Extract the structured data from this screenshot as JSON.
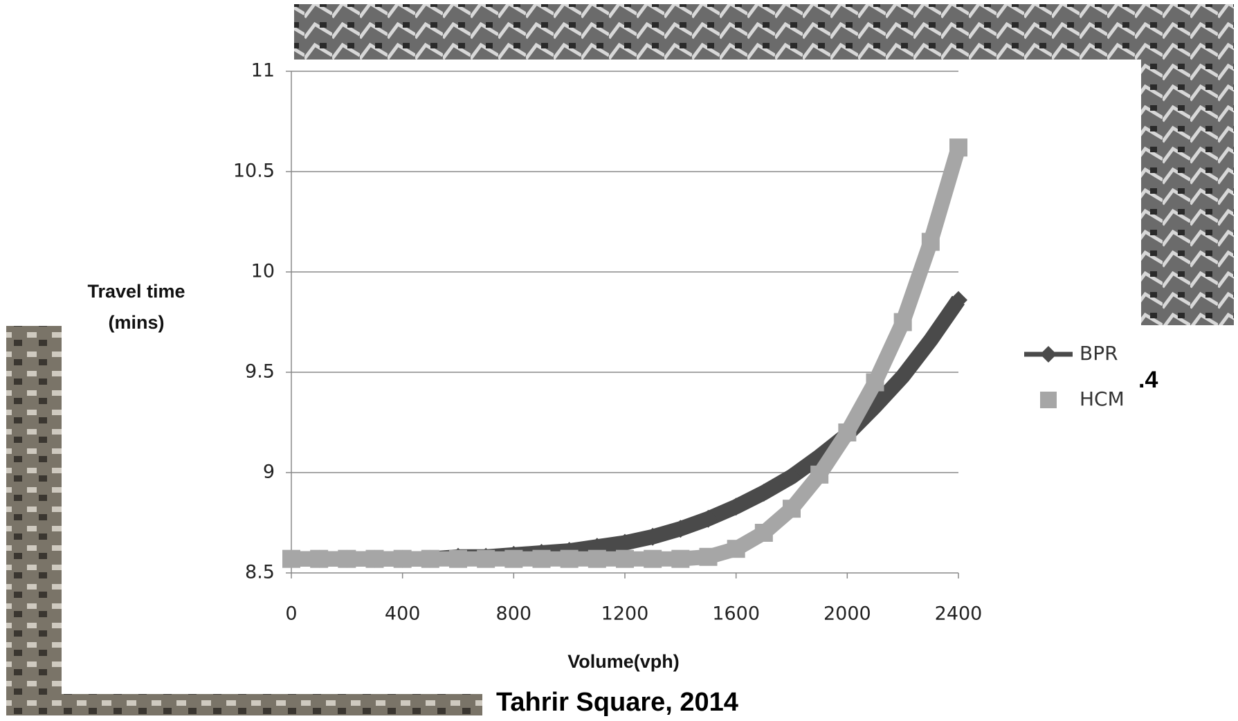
{
  "chart_data": {
    "type": "line",
    "y_label": "Travel time\n(mins)",
    "x_label": "Volume(vph)",
    "caption": "Tahrir Square, 2014",
    "fragment": ".4",
    "x": [
      0,
      100,
      200,
      300,
      400,
      500,
      600,
      700,
      800,
      900,
      1000,
      1100,
      1200,
      1300,
      1400,
      1500,
      1600,
      1700,
      1800,
      1900,
      2000,
      2100,
      2200,
      2300,
      2400
    ],
    "series": [
      {
        "name": "BPR",
        "color": "#4a4a4a",
        "marker": "diamond",
        "values": [
          8.57,
          8.57,
          8.57,
          8.57,
          8.57,
          8.57,
          8.58,
          8.58,
          8.59,
          8.6,
          8.61,
          8.63,
          8.65,
          8.68,
          8.72,
          8.77,
          8.83,
          8.9,
          8.98,
          9.08,
          9.19,
          9.33,
          9.48,
          9.66,
          9.86
        ]
      },
      {
        "name": "HCM",
        "color": "#a6a6a6",
        "marker": "square",
        "values": [
          8.57,
          8.57,
          8.57,
          8.57,
          8.57,
          8.57,
          8.57,
          8.57,
          8.57,
          8.57,
          8.57,
          8.57,
          8.57,
          8.57,
          8.57,
          8.58,
          8.62,
          8.7,
          8.82,
          8.99,
          9.2,
          9.45,
          9.75,
          10.15,
          10.62
        ]
      }
    ],
    "xlim": [
      0,
      2400
    ],
    "xticks": [
      0,
      400,
      800,
      1200,
      1600,
      2000,
      2400
    ],
    "ylim": [
      8.5,
      11
    ],
    "yticks": [
      8.5,
      9,
      9.5,
      10,
      10.5,
      11
    ],
    "grid": true,
    "legend": "right"
  }
}
